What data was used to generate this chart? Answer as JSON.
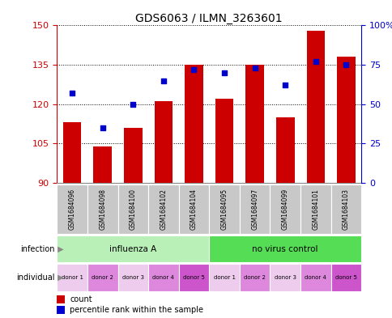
{
  "title": "GDS6063 / ILMN_3263601",
  "samples": [
    "GSM1684096",
    "GSM1684098",
    "GSM1684100",
    "GSM1684102",
    "GSM1684104",
    "GSM1684095",
    "GSM1684097",
    "GSM1684099",
    "GSM1684101",
    "GSM1684103"
  ],
  "counts": [
    113,
    104,
    111,
    121,
    135,
    122,
    135,
    115,
    148,
    138
  ],
  "percentiles": [
    57,
    35,
    50,
    65,
    72,
    70,
    73,
    62,
    77,
    75
  ],
  "ylim_left": [
    90,
    150
  ],
  "ylim_right": [
    0,
    100
  ],
  "yticks_left": [
    90,
    105,
    120,
    135,
    150
  ],
  "yticks_right": [
    0,
    25,
    50,
    75,
    100
  ],
  "bar_color": "#cc0000",
  "dot_color": "#0000cc",
  "infection_groups": [
    {
      "label": "influenza A",
      "start": 0,
      "end": 5,
      "color": "#b8f0b8"
    },
    {
      "label": "no virus control",
      "start": 5,
      "end": 10,
      "color": "#55dd55"
    }
  ],
  "individual_colors": [
    "#eeccee",
    "#dd88dd",
    "#eeccee",
    "#dd88dd",
    "#cc55cc",
    "#eeccee",
    "#dd88dd",
    "#eeccee",
    "#dd88dd",
    "#cc55cc"
  ],
  "individual_labels": [
    "donor 1",
    "donor 2",
    "donor 3",
    "donor 4",
    "donor 5",
    "donor 1",
    "donor 2",
    "donor 3",
    "donor 4",
    "donor 5"
  ],
  "sample_bg_color": "#c8c8c8",
  "xlabel_rotation": 90,
  "grid_linestyle": "dotted",
  "legend_count_label": "count",
  "legend_pct_label": "percentile rank within the sample",
  "infection_label": "infection",
  "individual_label": "individual",
  "tick_color_left": "#cc0000",
  "tick_color_right": "#0000cc",
  "fig_bg": "#ffffff",
  "border_color": "#aaaaaa"
}
